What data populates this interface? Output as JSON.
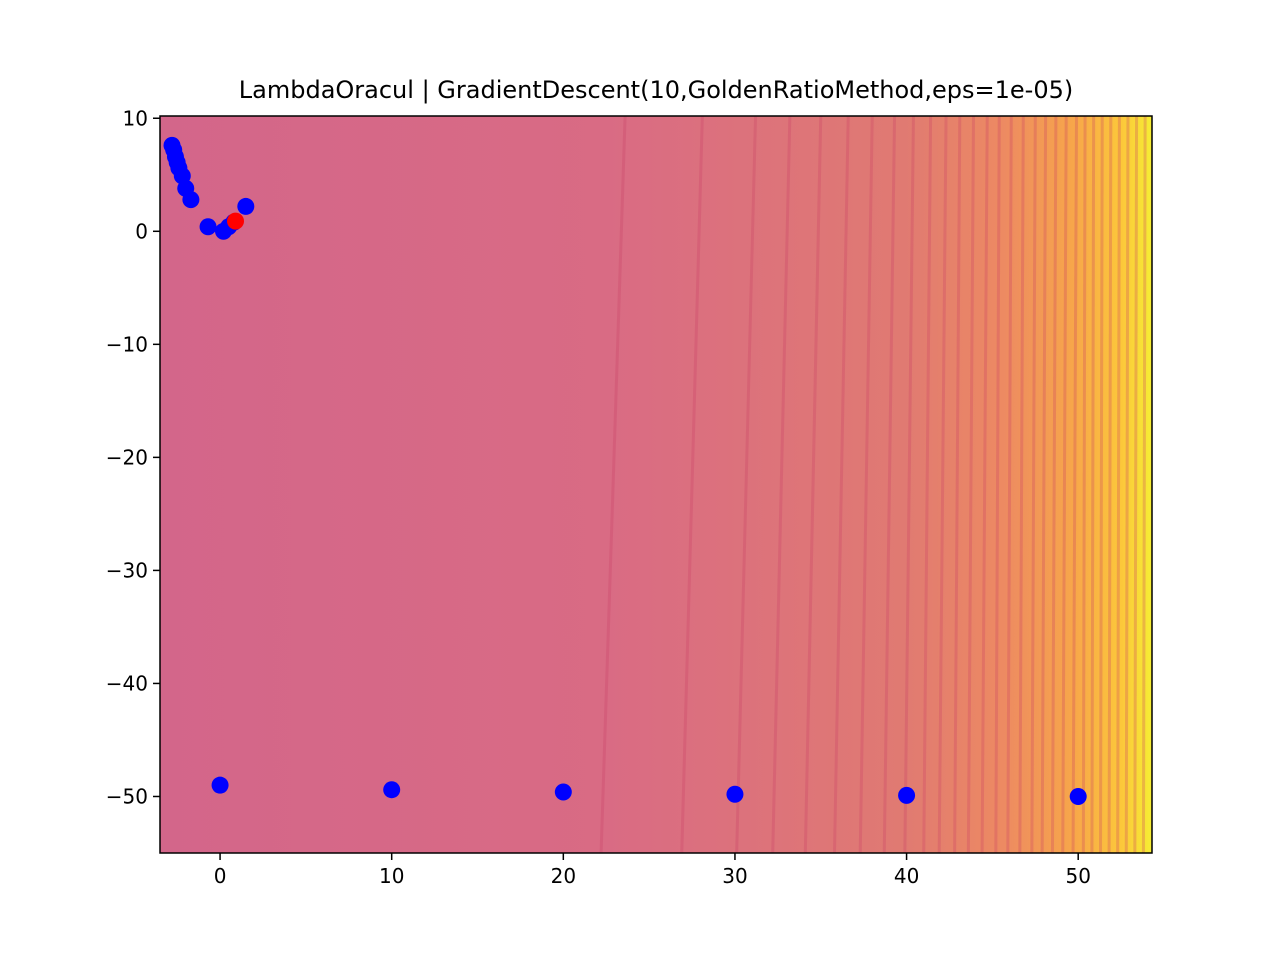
{
  "chart_data": {
    "type": "scatter",
    "title": "LambdaOracul | GradientDescent(10,GoldenRatioMethod,eps=1e-05)",
    "xlabel": "",
    "ylabel": "",
    "xlim": [
      -3.5,
      54.3
    ],
    "ylim": [
      -55,
      10.2
    ],
    "x_ticks": [
      0,
      10,
      20,
      30,
      40,
      50
    ],
    "x_tick_labels": [
      "0",
      "10",
      "20",
      "30",
      "40",
      "50"
    ],
    "y_ticks": [
      10,
      0,
      -10,
      -20,
      -30,
      -40,
      -50
    ],
    "y_tick_labels": [
      "10",
      "0",
      "−10",
      "−20",
      "−30",
      "−40",
      "−50"
    ],
    "grid": false,
    "background": {
      "kind": "filled-contour",
      "colormap": "plasma-light",
      "colors": [
        "#d3668a",
        "#d96b84",
        "#e07a72",
        "#ed8a62",
        "#f7a64a",
        "#fcc83a",
        "#f6ee33"
      ],
      "levels_x_bottom": [
        22.2,
        26.9,
        30.1,
        32.2,
        34.1,
        35.8,
        37.3,
        38.7,
        39.9,
        41.0,
        41.9,
        42.8,
        43.6,
        44.4,
        45.2,
        45.9,
        46.6,
        47.3,
        47.9,
        48.5,
        49.1,
        49.7,
        50.3,
        50.8,
        51.3,
        51.8,
        52.3,
        52.8,
        53.3,
        53.8
      ],
      "levels_x_top": [
        23.6,
        28.1,
        31.2,
        33.2,
        35.0,
        36.6,
        38.0,
        39.3,
        40.4,
        41.4,
        42.3,
        43.1,
        43.9,
        44.7,
        45.4,
        46.1,
        46.8,
        47.5,
        48.1,
        48.7,
        49.3,
        49.9,
        50.4,
        50.9,
        51.4,
        51.9,
        52.4,
        52.9,
        53.4,
        53.9
      ]
    },
    "series": [
      {
        "color": "#0000ff",
        "x": [
          -2.8,
          -2.7,
          -2.6,
          -2.5,
          -2.4,
          -2.2,
          -2.0,
          -1.7,
          -0.7,
          0.2,
          0.5,
          0.8,
          1.5,
          0,
          10,
          20,
          30,
          40,
          50
        ],
        "y": [
          7.6,
          7.2,
          6.6,
          6.1,
          5.6,
          4.9,
          3.8,
          2.8,
          0.4,
          0.0,
          0.4,
          0.8,
          2.2,
          -49.0,
          -49.4,
          -49.6,
          -49.8,
          -49.9,
          -50.0
        ]
      },
      {
        "color": "#ff0000",
        "x": [
          0.9
        ],
        "y": [
          0.9
        ]
      }
    ]
  }
}
